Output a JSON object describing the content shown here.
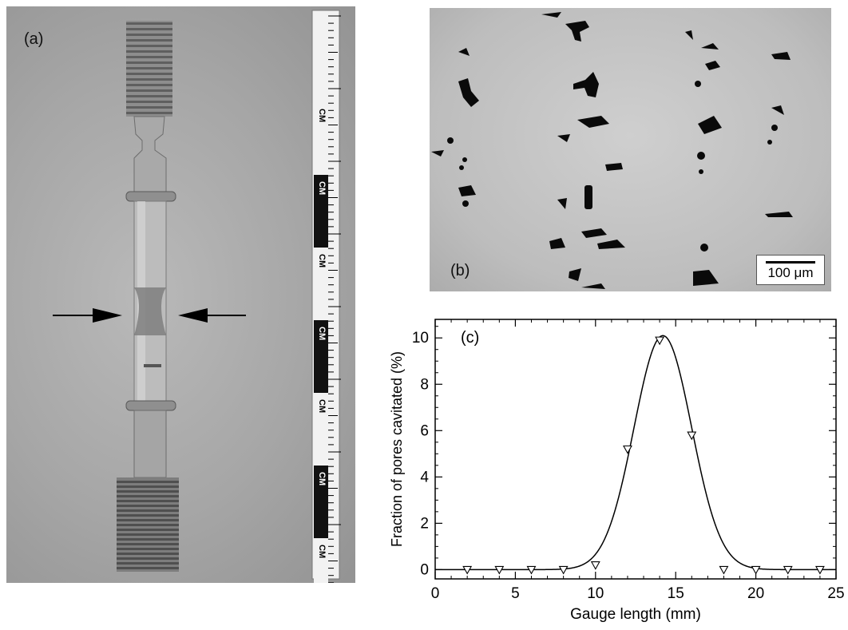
{
  "panel_a": {
    "label": "(a)",
    "ruler_labels": [
      "CM",
      "CM",
      "CM",
      "CM",
      "CM",
      "CM",
      "CM"
    ]
  },
  "panel_b": {
    "label": "(b)",
    "scale_bar": "100 μm"
  },
  "chart_data": {
    "type": "scatter",
    "label": "(c)",
    "xlabel": "Gauge length (mm)",
    "ylabel": "Fraction of pores cavitated (%)",
    "xlim": [
      0,
      25
    ],
    "ylim": [
      -0.4,
      10.8
    ],
    "xticks": [
      0,
      5,
      10,
      15,
      20,
      25
    ],
    "yticks": [
      0,
      2,
      4,
      6,
      8,
      10
    ],
    "marker": "open-triangle-down",
    "points": [
      {
        "x": 2,
        "y": 0
      },
      {
        "x": 4,
        "y": 0
      },
      {
        "x": 6,
        "y": 0
      },
      {
        "x": 8,
        "y": 0
      },
      {
        "x": 10,
        "y": 0.2
      },
      {
        "x": 12,
        "y": 5.2
      },
      {
        "x": 14,
        "y": 9.9
      },
      {
        "x": 16,
        "y": 5.8
      },
      {
        "x": 18,
        "y": 0
      },
      {
        "x": 20,
        "y": 0
      },
      {
        "x": 22,
        "y": 0
      },
      {
        "x": 24,
        "y": 0
      }
    ],
    "fit_curve": {
      "type": "gaussian",
      "peak_x": 14.2,
      "peak_y": 10.1,
      "sigma": 1.8
    },
    "grid": false
  }
}
